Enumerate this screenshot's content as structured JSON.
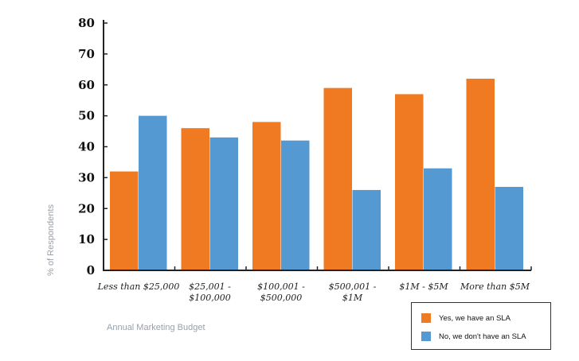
{
  "chart_data": {
    "type": "bar",
    "xlabel": "Annual Marketing Budget",
    "ylabel": "% of Respondents",
    "ylim": [
      0,
      80
    ],
    "yticks": [
      0,
      10,
      20,
      30,
      40,
      50,
      60,
      70,
      80
    ],
    "grid": false,
    "legend_position": "bottom-right",
    "categories": [
      [
        "Less than $25,000"
      ],
      [
        "$25,001 -",
        "$100,000"
      ],
      [
        "$100,001 -",
        "$500,000"
      ],
      [
        "$500,001 -",
        "$1M"
      ],
      [
        "$1M - $5M"
      ],
      [
        "More than $5M"
      ]
    ],
    "series": [
      {
        "name": "Yes, we have an SLA",
        "color": "#f07a22",
        "values": [
          32,
          46,
          48,
          59,
          57,
          62
        ]
      },
      {
        "name": "No, we don't have an SLA",
        "color": "#5499d1",
        "values": [
          50,
          43,
          42,
          26,
          33,
          27
        ]
      }
    ]
  }
}
